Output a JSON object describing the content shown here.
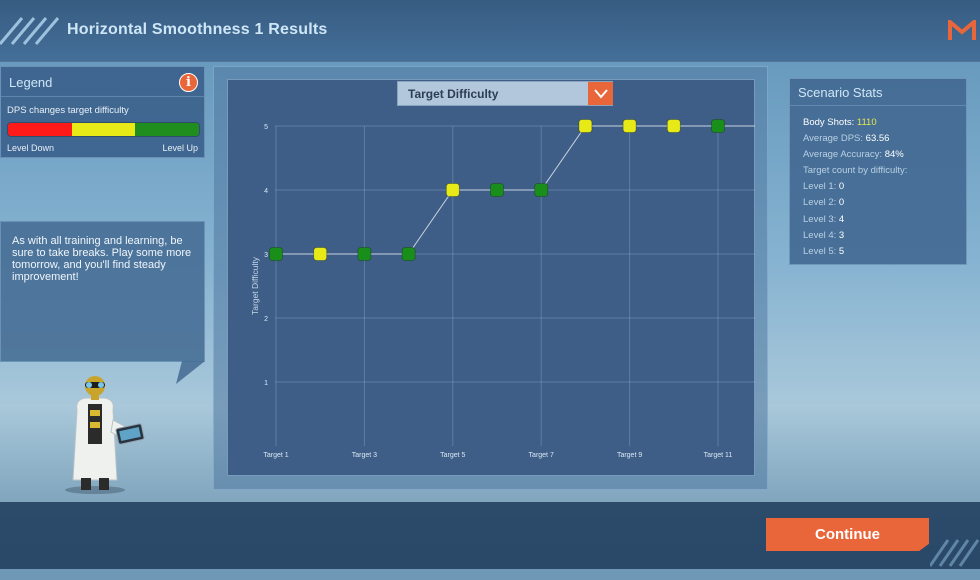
{
  "header": {
    "title": "Horizontal Smoothness 1 Results"
  },
  "legend": {
    "title": "Legend",
    "description": "DPS changes target difficulty",
    "level_down": "Level Down",
    "level_up": "Level Up",
    "colors": [
      "#ff1a1a",
      "#e8ea17",
      "#1f8e1f"
    ]
  },
  "bubble": {
    "text": "As with all training and learning, be sure to take breaks. Play some more tomorrow, and you'll find steady improvement!"
  },
  "chart_selector": {
    "label": "Target Difficulty"
  },
  "chart_data": {
    "type": "line",
    "x": [
      "Target 1",
      "Target 2",
      "Target 3",
      "Target 4",
      "Target 5",
      "Target 6",
      "Target 7",
      "Target 8",
      "Target 9",
      "Target 10",
      "Target 11",
      "Target 12"
    ],
    "tick_labels": [
      "Target 1",
      "Target 3",
      "Target 5",
      "Target 7",
      "Target 9",
      "Target 11"
    ],
    "values": [
      3,
      3,
      3,
      3,
      4,
      4,
      4,
      5,
      5,
      5,
      5,
      5
    ],
    "point_colors": [
      "#1a8e1a",
      "#e8ea17",
      "#1a8e1a",
      "#1a8e1a",
      "#e8ea17",
      "#1a8e1a",
      "#1a8e1a",
      "#e8ea17",
      "#e8ea17",
      "#e8ea17",
      "#1a8e1a",
      "#e8ea17"
    ],
    "ylabel": "Target Difficulty",
    "yticks": [
      1,
      2,
      3,
      4,
      5
    ],
    "ylim": [
      0,
      5
    ],
    "grid": true
  },
  "stats": {
    "title": "Scenario Stats",
    "body_shots_label": "Body Shots: ",
    "body_shots_value": "1110",
    "avg_dps_label": "Average DPS: ",
    "avg_dps_value": "63.56",
    "avg_acc_label": "Average Accuracy: ",
    "avg_acc_value": "84%",
    "count_label": "Target count by difficulty:",
    "levels": [
      {
        "label": "Level 1: ",
        "value": "0"
      },
      {
        "label": "Level 2: ",
        "value": "0"
      },
      {
        "label": "Level 3: ",
        "value": "4"
      },
      {
        "label": "Level 4: ",
        "value": "3"
      },
      {
        "label": "Level 5: ",
        "value": "5"
      }
    ]
  },
  "footer": {
    "continue_label": "Continue"
  },
  "icons": {
    "logo": "m-logo-icon",
    "info": "info-icon",
    "dropdown": "chevron-down-icon"
  }
}
